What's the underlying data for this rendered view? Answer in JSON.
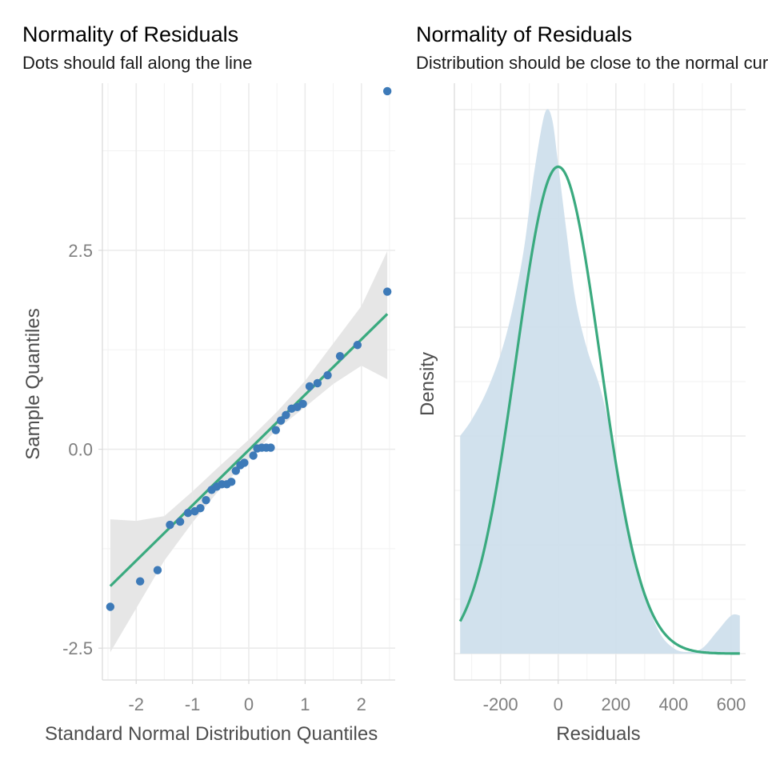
{
  "panels": {
    "qq": {
      "title": "Normality of Residuals",
      "subtitle": "Dots should fall along the line",
      "xlabel": "Standard Normal Distribution Quantiles",
      "ylabel": "Sample Quantiles"
    },
    "density": {
      "title": "Normality of Residuals",
      "subtitle": "Distribution should be close to the normal curve",
      "xlabel": "Residuals",
      "ylabel": "Density"
    }
  },
  "colors": {
    "points": "#3d7ab8",
    "line": "#3aaa7f",
    "band": "#e6e6e6",
    "density_fill": "#cfdfec"
  },
  "chart_data": [
    {
      "type": "scatter",
      "title": "Normality of Residuals",
      "subtitle": "Dots should fall along the line",
      "xlabel": "Standard Normal Distribution Quantiles",
      "ylabel": "Sample Quantiles",
      "xlim": [
        -2.6,
        2.6
      ],
      "ylim": [
        -2.9,
        4.6
      ],
      "xticks": [
        -2,
        -1,
        0,
        1,
        2
      ],
      "xtick_labels": [
        "-2",
        "-1",
        "0",
        "1",
        "2"
      ],
      "yticks": [
        -2.5,
        0.0,
        2.5
      ],
      "ytick_labels": [
        "-2.5",
        "0.0",
        "2.5"
      ],
      "grid": true,
      "points": [
        {
          "x": -2.46,
          "y": -1.98
        },
        {
          "x": -1.93,
          "y": -1.66
        },
        {
          "x": -1.62,
          "y": -1.52
        },
        {
          "x": -1.4,
          "y": -0.95
        },
        {
          "x": -1.22,
          "y": -0.91
        },
        {
          "x": -1.08,
          "y": -0.8
        },
        {
          "x": -0.96,
          "y": -0.78
        },
        {
          "x": -0.86,
          "y": -0.74
        },
        {
          "x": -0.76,
          "y": -0.64
        },
        {
          "x": -0.66,
          "y": -0.51
        },
        {
          "x": -0.57,
          "y": -0.47
        },
        {
          "x": -0.48,
          "y": -0.44
        },
        {
          "x": -0.39,
          "y": -0.44
        },
        {
          "x": -0.31,
          "y": -0.41
        },
        {
          "x": -0.23,
          "y": -0.27
        },
        {
          "x": -0.15,
          "y": -0.2
        },
        {
          "x": -0.08,
          "y": -0.17
        },
        {
          "x": 0.08,
          "y": -0.08
        },
        {
          "x": 0.15,
          "y": 0.01
        },
        {
          "x": 0.23,
          "y": 0.02
        },
        {
          "x": 0.31,
          "y": 0.02
        },
        {
          "x": 0.39,
          "y": 0.02
        },
        {
          "x": 0.48,
          "y": 0.24
        },
        {
          "x": 0.57,
          "y": 0.36
        },
        {
          "x": 0.66,
          "y": 0.43
        },
        {
          "x": 0.76,
          "y": 0.51
        },
        {
          "x": 0.86,
          "y": 0.53
        },
        {
          "x": 0.96,
          "y": 0.57
        },
        {
          "x": 1.08,
          "y": 0.79
        },
        {
          "x": 1.22,
          "y": 0.83
        },
        {
          "x": 1.4,
          "y": 0.93
        },
        {
          "x": 1.62,
          "y": 1.17
        },
        {
          "x": 1.93,
          "y": 1.31
        },
        {
          "x": 2.46,
          "y": 1.98
        },
        {
          "x": 2.46,
          "y": 4.5
        }
      ],
      "reference_line": {
        "x": [
          -2.46,
          2.46
        ],
        "y": [
          -1.72,
          1.7
        ]
      },
      "confidence_band": {
        "x": [
          -2.46,
          -2.0,
          -1.5,
          -1.0,
          -0.5,
          0.0,
          0.5,
          1.0,
          1.5,
          2.0,
          2.46
        ],
        "lower": [
          -2.55,
          -2.0,
          -1.4,
          -0.92,
          -0.49,
          -0.12,
          0.25,
          0.53,
          0.82,
          1.05,
          0.88
        ],
        "upper": [
          -0.88,
          -0.9,
          -0.84,
          -0.53,
          -0.2,
          0.12,
          0.47,
          0.86,
          1.33,
          1.8,
          2.49
        ]
      }
    },
    {
      "type": "area",
      "title": "Normality of Residuals",
      "subtitle": "Distribution should be close to the normal curve",
      "xlabel": "Residuals",
      "ylabel": "Density",
      "xlim": [
        -360,
        650
      ],
      "ylim": [
        0,
        1.0
      ],
      "xticks": [
        -200,
        0,
        200,
        400,
        600
      ],
      "xtick_labels": [
        "-200",
        "0",
        "200",
        "400",
        "600"
      ],
      "grid": true,
      "series": [
        {
          "kind": "density_estimate",
          "x": [
            -340,
            -300,
            -250,
            -200,
            -160,
            -120,
            -90,
            -60,
            -40,
            -20,
            0,
            30,
            60,
            100,
            150,
            200,
            250,
            300,
            350,
            400,
            450,
            500,
            550,
            600,
            630
          ],
          "y": [
            0.4,
            0.43,
            0.48,
            0.55,
            0.63,
            0.74,
            0.86,
            0.96,
            1.0,
            0.98,
            0.9,
            0.77,
            0.65,
            0.56,
            0.48,
            0.36,
            0.22,
            0.11,
            0.04,
            0.01,
            0.003,
            0.01,
            0.04,
            0.07,
            0.07
          ]
        },
        {
          "kind": "normal_curve",
          "mean": 0,
          "sd": 146,
          "x_from": -340,
          "x_to": 630
        }
      ]
    }
  ]
}
